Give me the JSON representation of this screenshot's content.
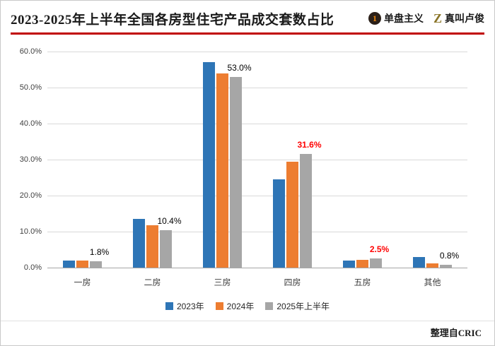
{
  "header": {
    "title": "2023-2025年上半年全国各房型住宅产品成交套数占比",
    "logo1_icon": "1",
    "logo1": "单盘主义",
    "logo2_icon": "Z",
    "logo2": "真叫卢俊",
    "accent_color": "#c00000"
  },
  "footer": {
    "source": "整理自CRIC"
  },
  "chart_data": {
    "type": "bar",
    "title": "2023-2025年上半年全国各房型住宅产品成交套数占比",
    "categories": [
      "一房",
      "二房",
      "三房",
      "四房",
      "五房",
      "其他"
    ],
    "series": [
      {
        "name": "2023年",
        "color": "#2e75b6",
        "values": [
          2.0,
          13.5,
          57.0,
          24.5,
          2.0,
          3.0
        ]
      },
      {
        "name": "2024年",
        "color": "#ed7d31",
        "values": [
          2.0,
          11.8,
          54.0,
          29.5,
          2.2,
          1.2
        ]
      },
      {
        "name": "2025年上半年",
        "color": "#a6a6a6",
        "values": [
          1.8,
          10.4,
          53.0,
          31.6,
          2.5,
          0.8
        ]
      }
    ],
    "data_labels": [
      {
        "text": "1.8%",
        "color": "#000000",
        "bold": false
      },
      {
        "text": "10.4%",
        "color": "#000000",
        "bold": false
      },
      {
        "text": "53.0%",
        "color": "#000000",
        "bold": false
      },
      {
        "text": "31.6%",
        "color": "#ff0000",
        "bold": true
      },
      {
        "text": "2.5%",
        "color": "#ff0000",
        "bold": true
      },
      {
        "text": "0.8%",
        "color": "#000000",
        "bold": false
      }
    ],
    "ylim": [
      0,
      60
    ],
    "yticks": [
      "60.0%",
      "50.0%",
      "40.0%",
      "30.0%",
      "20.0%",
      "10.0%",
      "0.0%"
    ],
    "grid": true,
    "legend_position": "bottom"
  }
}
